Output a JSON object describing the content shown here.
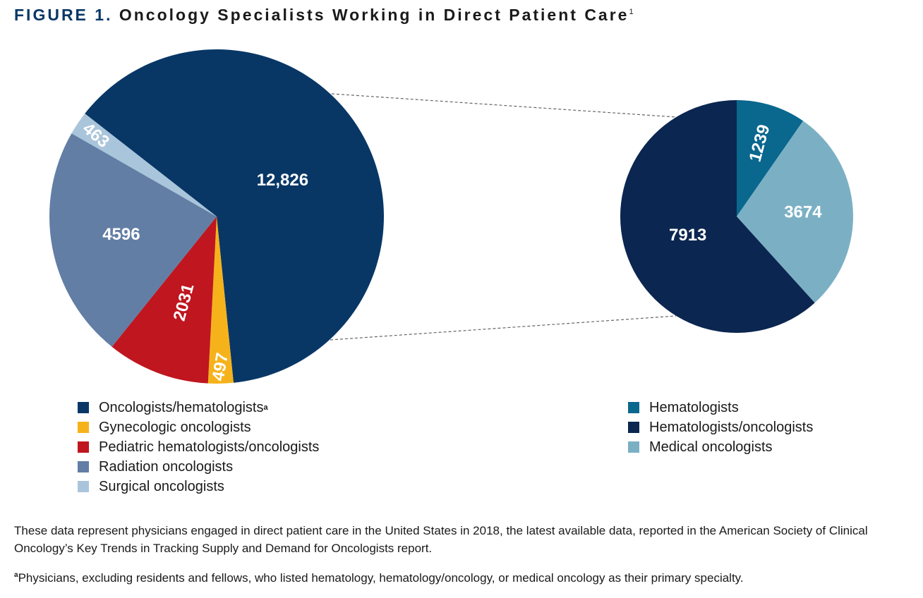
{
  "title": {
    "figure_label": "FIGURE 1.",
    "text": "Oncology Specialists Working in Direct Patient Care",
    "superscript": "1"
  },
  "chart_data": [
    {
      "type": "pie",
      "name": "All oncology specialists",
      "slices": [
        {
          "label": "Oncologists/hematologists",
          "value": 12826,
          "display": "12,826",
          "color": "#083766"
        },
        {
          "label": "Gynecologic oncologists",
          "value": 497,
          "display": "497",
          "color": "#f6b21b"
        },
        {
          "label": "Pediatric hematologists/oncologists",
          "value": 2031,
          "display": "2031",
          "color": "#bf161f"
        },
        {
          "label": "Radiation oncologists",
          "value": 4596,
          "display": "4596",
          "color": "#627ea5"
        },
        {
          "label": "Surgical oncologists",
          "value": 463,
          "display": "463",
          "color": "#a9c5db"
        }
      ]
    },
    {
      "type": "pie",
      "name": "Oncologists/hematologists breakdown",
      "slices": [
        {
          "label": "Hematologists",
          "value": 1239,
          "display": "1239",
          "color": "#0a678e"
        },
        {
          "label": "Medical oncologists",
          "value": 3674,
          "display": "3674",
          "color": "#7bb0c4"
        },
        {
          "label": "Hematologists/oncologists",
          "value": 7913,
          "display": "7913",
          "color": "#0b2650"
        }
      ]
    }
  ],
  "legend_left": [
    {
      "label": "Oncologists/hematologists",
      "sup": "a",
      "color": "#083766"
    },
    {
      "label": "Gynecologic oncologists",
      "sup": "",
      "color": "#f6b21b"
    },
    {
      "label": "Pediatric hematologists/oncologists",
      "sup": "",
      "color": "#bf161f"
    },
    {
      "label": "Radiation oncologists",
      "sup": "",
      "color": "#627ea5"
    },
    {
      "label": "Surgical oncologists",
      "sup": "",
      "color": "#a9c5db"
    }
  ],
  "legend_right": [
    {
      "label": "Hematologists",
      "color": "#0a678e"
    },
    {
      "label": "Hematologists/oncologists",
      "color": "#0b2650"
    },
    {
      "label": "Medical oncologists",
      "color": "#7bb0c4"
    }
  ],
  "footer": {
    "text": "These data represent physicians engaged in direct patient care in the United States in 2018, the latest available data, reported in the American Society of Clinical Oncology’s Key Trends in Tracking Supply and Demand for Oncologists report.",
    "note_marker": "a",
    "note": "Physicians, excluding residents and fellows, who listed hematology, hematology/oncology, or medical oncology as their primary specialty."
  }
}
